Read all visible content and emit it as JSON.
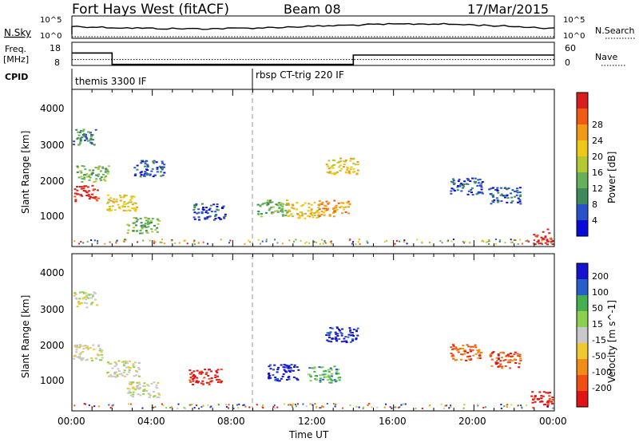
{
  "header": {
    "title": "Fort Hays West (fitACF)",
    "beam": "Beam 08",
    "date": "17/Mar/2015"
  },
  "nsky_panel": {
    "left_label": "N.Sky",
    "right_label": "N.Search",
    "left_ticks": [
      "10^5",
      "10^0"
    ],
    "right_ticks": [
      "10^5",
      "10^0"
    ]
  },
  "freq_panel": {
    "left_label_1": "Freq.",
    "left_label_2": "[MHz]",
    "left_ticks": [
      "18",
      "8"
    ],
    "right_ticks": [
      "60",
      "0"
    ],
    "right_label": "Nave",
    "freq_steps": [
      [
        0,
        14.0
      ],
      [
        2,
        8.5
      ],
      [
        14,
        13.0
      ],
      [
        24,
        13.0
      ]
    ],
    "nave_level": 17
  },
  "cpid_panel": {
    "label": "CPID",
    "segments": [
      {
        "start": 0,
        "text": "themis 3300 IF"
      },
      {
        "start": 9,
        "text": "rbsp CT-trig 220 IF"
      }
    ]
  },
  "time_axis": {
    "xlabel": "Time UT",
    "ticks": [
      "00:00",
      "04:00",
      "08:00",
      "12:00",
      "16:00",
      "20:00",
      "00:00"
    ],
    "hours_range": [
      0,
      24
    ]
  },
  "power_panel": {
    "ylabel": "Slant Range [km]",
    "y_ticks": [
      "1000",
      "2000",
      "3000",
      "4000"
    ],
    "colorbar_label": "Power [dB]",
    "colorbar_ticks": [
      "4",
      "8",
      "12",
      "16",
      "20",
      "24",
      "28"
    ],
    "colors": [
      "#0a0ad8",
      "#2a52c8",
      "#3e8a5a",
      "#67b05a",
      "#b4c832",
      "#f0c818",
      "#f09a18",
      "#f05a14",
      "#d81e1e"
    ]
  },
  "velocity_panel": {
    "ylabel": "Slant Range [km]",
    "y_ticks": [
      "1000",
      "2000",
      "3000",
      "4000"
    ],
    "colorbar_label": "Velocity [m s^-1]",
    "colorbar_ticks": [
      "-200",
      "-100",
      "-50",
      "-15",
      "15",
      "50",
      "100",
      "200"
    ],
    "colors": [
      "#e01414",
      "#f05014",
      "#f08c18",
      "#f0c830",
      "#c8c8c8",
      "#8cd050",
      "#46b050",
      "#2860c8",
      "#1414d0"
    ]
  },
  "chart_data": [
    {
      "type": "heatmap",
      "title": "Power",
      "ylabel": "Slant Range [km]",
      "xlabel": "Time UT",
      "ylim": [
        180,
        4500
      ],
      "x_range_hours": [
        0,
        24
      ],
      "blobs": [
        {
          "t": 0.5,
          "r": 1650,
          "level": 8
        },
        {
          "t": 0.4,
          "r": 3200,
          "level": 2
        },
        {
          "t": 1.0,
          "r": 2200,
          "level": 3
        },
        {
          "t": 2.5,
          "r": 1400,
          "level": 5
        },
        {
          "t": 3.5,
          "r": 780,
          "level": 3
        },
        {
          "t": 3.8,
          "r": 2350,
          "level": 1
        },
        {
          "t": 6.8,
          "r": 1150,
          "level": 1
        },
        {
          "t": 10.0,
          "r": 1250,
          "level": 3
        },
        {
          "t": 11.5,
          "r": 1200,
          "level": 5
        },
        {
          "t": 13.0,
          "r": 1250,
          "level": 6
        },
        {
          "t": 13.4,
          "r": 2400,
          "level": 5
        },
        {
          "t": 19.6,
          "r": 1850,
          "level": 1
        },
        {
          "t": 21.5,
          "r": 1600,
          "level": 1
        },
        {
          "t": 23.6,
          "r": 450,
          "level": 8
        }
      ]
    },
    {
      "type": "heatmap",
      "title": "Velocity",
      "ylabel": "Slant Range [km]",
      "xlabel": "Time UT",
      "ylim": [
        180,
        4500
      ],
      "x_range_hours": [
        0,
        24
      ],
      "blobs": [
        {
          "t": 0.7,
          "r": 1800,
          "level": 4
        },
        {
          "t": 0.4,
          "r": 3250,
          "level": 4
        },
        {
          "t": 2.5,
          "r": 1350,
          "level": 4
        },
        {
          "t": 3.5,
          "r": 780,
          "level": 4
        },
        {
          "t": 6.6,
          "r": 1150,
          "level": 0
        },
        {
          "t": 10.5,
          "r": 1250,
          "level": 8
        },
        {
          "t": 12.5,
          "r": 1200,
          "level": 6
        },
        {
          "t": 13.4,
          "r": 2300,
          "level": 8
        },
        {
          "t": 19.6,
          "r": 1800,
          "level": 1
        },
        {
          "t": 21.5,
          "r": 1600,
          "level": 1
        },
        {
          "t": 23.6,
          "r": 500,
          "level": 0
        }
      ]
    }
  ]
}
